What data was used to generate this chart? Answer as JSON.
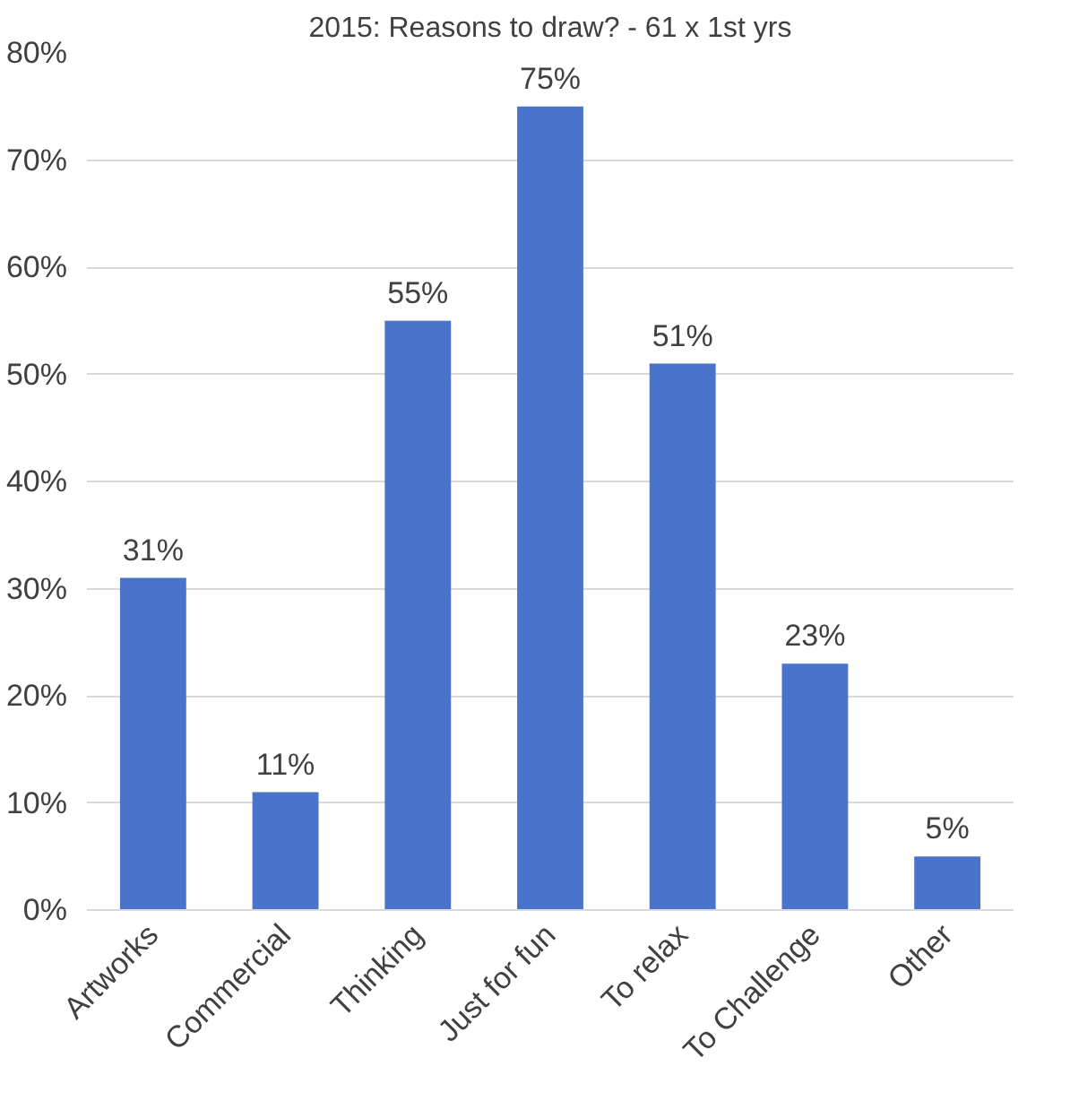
{
  "chart_data": {
    "type": "bar",
    "title": "2015: Reasons to draw? - 61 x 1st yrs",
    "categories": [
      "Artworks",
      "Commercial",
      "Thinking",
      "Just for fun",
      "To relax",
      "To Challenge",
      "Other"
    ],
    "values": [
      31,
      11,
      55,
      75,
      51,
      23,
      5
    ],
    "value_labels": [
      "31%",
      "11%",
      "55%",
      "75%",
      "51%",
      "23%",
      "5%"
    ],
    "color": "#4a74cc",
    "ylim": [
      0,
      80
    ],
    "yticks": [
      {
        "value": 0,
        "label": "0%"
      },
      {
        "value": 10,
        "label": "10%"
      },
      {
        "value": 20,
        "label": "20%"
      },
      {
        "value": 30,
        "label": "30%"
      },
      {
        "value": 40,
        "label": "40%"
      },
      {
        "value": 50,
        "label": "50%"
      },
      {
        "value": 60,
        "label": "60%"
      },
      {
        "value": 70,
        "label": "70%"
      },
      {
        "value": 80,
        "label": "80%"
      }
    ],
    "grid": "y"
  }
}
